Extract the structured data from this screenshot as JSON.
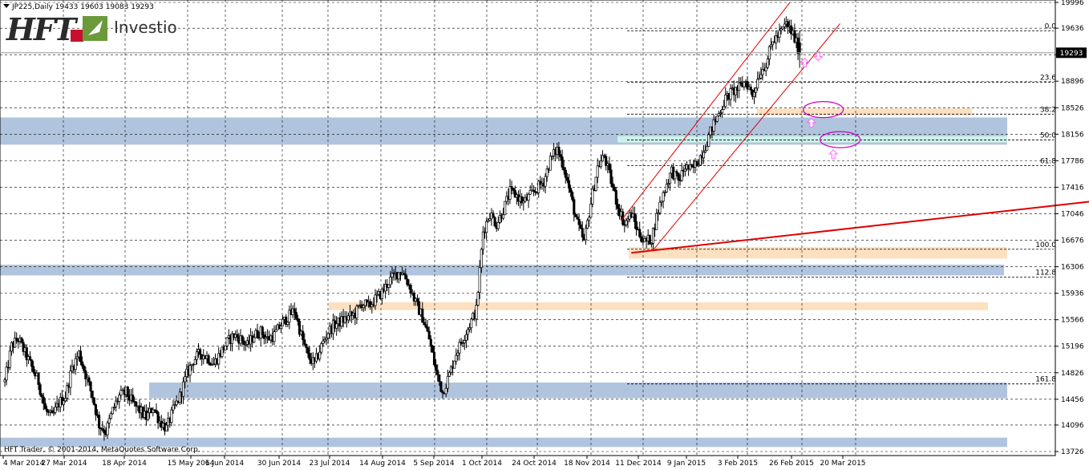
{
  "header": {
    "symbol_info": "JP225,Daily  19433 19603 19083 19293"
  },
  "logo": {
    "brand": "HFT",
    "product": "Investio",
    "colors": {
      "brand": "#2b2b2b",
      "accent_red": "#c8102e",
      "accent_green": "#6a9a3a",
      "product": "#333333"
    }
  },
  "footer": {
    "copyright": "HFT Trader, © 2001-2014, MetaQuotes Software Corp."
  },
  "chart_data": {
    "type": "candlestick",
    "symbol": "JP225",
    "timeframe": "Daily",
    "last_ohlc": {
      "open": 19433,
      "high": 19603,
      "low": 19083,
      "close": 19293
    },
    "current_price_label": "19293",
    "ylim": [
      13726,
      19996
    ],
    "y_ticks": [
      19996,
      19636,
      19266,
      18896,
      18526,
      18156,
      17786,
      17416,
      17046,
      16676,
      16306,
      15936,
      15566,
      15196,
      14826,
      14456,
      14096,
      13726
    ],
    "x_ticks": [
      "4 Mar 2014",
      "27 Mar 2014",
      "18 Apr 2014",
      "15 May 2014",
      "6 Jun 2014",
      "30 Jun 2014",
      "23 Jul 2014",
      "14 Aug 2014",
      "5 Sep 2014",
      "1 Oct 2014",
      "24 Oct 2014",
      "18 Nov 2014",
      "11 Dec 2014",
      "9 Jan 2015",
      "3 Feb 2015",
      "26 Feb 2015",
      "20 Mar 2015"
    ],
    "grid": true,
    "price_path": [
      [
        0,
        14700
      ],
      [
        4,
        15200
      ],
      [
        8,
        15300
      ],
      [
        12,
        15100
      ],
      [
        16,
        14900
      ],
      [
        20,
        14700
      ],
      [
        24,
        14300
      ],
      [
        28,
        14200
      ],
      [
        32,
        14400
      ],
      [
        36,
        14500
      ],
      [
        40,
        14900
      ],
      [
        44,
        15100
      ],
      [
        48,
        14800
      ],
      [
        52,
        14500
      ],
      [
        56,
        14100
      ],
      [
        60,
        14000
      ],
      [
        64,
        14300
      ],
      [
        68,
        14500
      ],
      [
        72,
        14550
      ],
      [
        76,
        14400
      ],
      [
        80,
        14300
      ],
      [
        84,
        14200
      ],
      [
        88,
        14350
      ],
      [
        92,
        14150
      ],
      [
        96,
        14050
      ],
      [
        100,
        14300
      ],
      [
        104,
        14500
      ],
      [
        108,
        14800
      ],
      [
        112,
        15000
      ],
      [
        116,
        15100
      ],
      [
        120,
        15050
      ],
      [
        124,
        14950
      ],
      [
        128,
        15100
      ],
      [
        132,
        15250
      ],
      [
        136,
        15350
      ],
      [
        140,
        15300
      ],
      [
        144,
        15200
      ],
      [
        148,
        15350
      ],
      [
        152,
        15400
      ],
      [
        156,
        15300
      ],
      [
        160,
        15350
      ],
      [
        164,
        15500
      ],
      [
        168,
        15600
      ],
      [
        172,
        15700
      ],
      [
        176,
        15350
      ],
      [
        180,
        15050
      ],
      [
        184,
        14950
      ],
      [
        188,
        15200
      ],
      [
        192,
        15400
      ],
      [
        196,
        15500
      ],
      [
        200,
        15550
      ],
      [
        204,
        15600
      ],
      [
        208,
        15650
      ],
      [
        212,
        15800
      ],
      [
        216,
        15750
      ],
      [
        220,
        15850
      ],
      [
        224,
        15950
      ],
      [
        228,
        16100
      ],
      [
        232,
        16200
      ],
      [
        236,
        16250
      ],
      [
        240,
        16050
      ],
      [
        244,
        15800
      ],
      [
        248,
        15600
      ],
      [
        252,
        15300
      ],
      [
        256,
        14850
      ],
      [
        260,
        14550
      ],
      [
        264,
        14800
      ],
      [
        268,
        15100
      ],
      [
        272,
        15300
      ],
      [
        276,
        15500
      ],
      [
        280,
        15700
      ],
      [
        284,
        16800
      ],
      [
        288,
        17050
      ],
      [
        292,
        16900
      ],
      [
        296,
        17100
      ],
      [
        300,
        17350
      ],
      [
        304,
        17300
      ],
      [
        308,
        17200
      ],
      [
        312,
        17300
      ],
      [
        316,
        17400
      ],
      [
        320,
        17500
      ],
      [
        324,
        17800
      ],
      [
        328,
        17950
      ],
      [
        332,
        17700
      ],
      [
        336,
        17300
      ],
      [
        340,
        16900
      ],
      [
        344,
        16650
      ],
      [
        348,
        17200
      ],
      [
        352,
        17700
      ],
      [
        356,
        17850
      ],
      [
        360,
        17500
      ],
      [
        364,
        17150
      ],
      [
        368,
        16900
      ],
      [
        372,
        17050
      ],
      [
        376,
        16800
      ],
      [
        380,
        16650
      ],
      [
        384,
        16700
      ],
      [
        388,
        17100
      ],
      [
        392,
        17400
      ],
      [
        396,
        17650
      ],
      [
        400,
        17500
      ],
      [
        404,
        17700
      ],
      [
        408,
        17650
      ],
      [
        412,
        17800
      ],
      [
        416,
        18000
      ],
      [
        420,
        18250
      ],
      [
        424,
        18450
      ],
      [
        428,
        18650
      ],
      [
        432,
        18750
      ],
      [
        436,
        18800
      ],
      [
        440,
        18900
      ],
      [
        444,
        18700
      ],
      [
        448,
        19000
      ],
      [
        452,
        19150
      ],
      [
        456,
        19450
      ],
      [
        460,
        19550
      ],
      [
        464,
        19700
      ],
      [
        468,
        19550
      ],
      [
        472,
        19293
      ]
    ],
    "fibonacci": {
      "levels": [
        {
          "label": "0.0",
          "price": 19600
        },
        {
          "label": "23.6",
          "price": 18880
        },
        {
          "label": "38.2",
          "price": 18436
        },
        {
          "label": "50.0",
          "price": 18075
        },
        {
          "label": "61.8",
          "price": 17716
        },
        {
          "label": "100.0",
          "price": 16550
        },
        {
          "label": "112.8",
          "price": 16161
        },
        {
          "label": "161.8",
          "price": 14670
        }
      ]
    },
    "zones": [
      {
        "kind": "resistance",
        "color": "#b0c4de",
        "price_top": 18390,
        "price_bottom": 18010
      },
      {
        "kind": "resistance",
        "color": "#b0c4de",
        "price_top": 16335,
        "price_bottom": 16185
      },
      {
        "kind": "resistance",
        "color": "#b0c4de",
        "price_top": 14690,
        "price_bottom": 14470
      },
      {
        "kind": "resistance",
        "color": "#b0c4de",
        "price_top": 13920,
        "price_bottom": 13790
      },
      {
        "kind": "support",
        "color": "#fde0c0",
        "price_top": 18515,
        "price_bottom": 18420
      },
      {
        "kind": "support",
        "color": "#ccf2ea",
        "price_top": 18130,
        "price_bottom": 18040
      },
      {
        "kind": "support",
        "color": "#fde0c0",
        "price_top": 16580,
        "price_bottom": 16420
      },
      {
        "kind": "support",
        "color": "#fde0c0",
        "price_top": 15810,
        "price_bottom": 15700
      }
    ],
    "trendlines": [
      {
        "color": "#e00000",
        "from": [
          372,
          16500
        ],
        "to": [
          650,
          17230
        ]
      },
      {
        "color": "#e00000",
        "from": [
          366,
          16950
        ],
        "to": [
          466,
          19990
        ]
      },
      {
        "color": "#e00000",
        "from": [
          385,
          16540
        ],
        "to": [
          496,
          19700
        ]
      }
    ],
    "annotations": {
      "ellipses": [
        {
          "color": "#cc00cc",
          "x": 486,
          "price": 18500
        },
        {
          "color": "#cc00cc",
          "x": 496,
          "price": 18080
        }
      ],
      "arrows": [
        {
          "direction": "up",
          "color": "#ff66ff",
          "x": 475,
          "price": 19150
        },
        {
          "direction": "down",
          "color": "#ff66ff",
          "x": 483,
          "price": 19250
        },
        {
          "direction": "up",
          "color": "#ff66ff",
          "x": 479,
          "price": 18310
        },
        {
          "direction": "up",
          "color": "#ff66ff",
          "x": 492,
          "price": 17870
        }
      ]
    },
    "colors": {
      "background": "#ffffff",
      "candle_body": "#000000",
      "candle_fill_bull": "#ffffff",
      "grid": "#000000",
      "current_price_bg": "#000000",
      "current_price_text": "#ffffff"
    }
  }
}
